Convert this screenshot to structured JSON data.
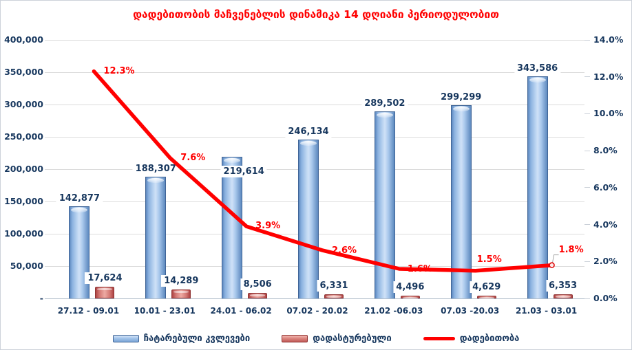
{
  "title": "დადებითობის მაჩვენებლის დინამიკა 14 დღიანი პერიოდულობით",
  "colors": {
    "title_red": "#FF0000",
    "axis_text_navy": "#17375E",
    "line_red": "#FF0000",
    "gridline": "#DCDCDC",
    "bar_blue_fill": "#A9C8EC",
    "bar_blue_border": "#3F6496",
    "bar_red_fill": "#D47A76",
    "bar_red_border": "#8F3333"
  },
  "chart_data": {
    "type": "combo",
    "title": "დადებითობის მაჩვენებლის დინამიკა 14 დღიანი პერიოდულობით",
    "grid": true,
    "legend_position": "bottom",
    "categories": [
      "27.12 - 09.01",
      "10.01 - 23.01",
      "24.01 - 06.02",
      "07.02 - 20.02",
      "21.02 -06.03",
      "07.03 -20.03",
      "21.03 - 03.01"
    ],
    "series": [
      {
        "name": "ჩატარებული კვლევები",
        "type": "bar",
        "axis": "left",
        "color": "#A9C8EC",
        "values": [
          142877,
          188307,
          219614,
          246134,
          289502,
          299299,
          343586
        ],
        "labels": [
          "142,877",
          "188,307",
          "219,614",
          "246,134",
          "289,502",
          "299,299",
          "343,586"
        ]
      },
      {
        "name": "დადასტურებული",
        "type": "bar",
        "axis": "left",
        "color": "#D47A76",
        "values": [
          17624,
          14289,
          8506,
          6331,
          4496,
          4629,
          6353
        ],
        "labels": [
          "17,624",
          "14,289",
          "8,506",
          "6,331",
          "4,496",
          "4,629",
          "6,353"
        ]
      },
      {
        "name": "დადებითობა",
        "type": "line",
        "axis": "right",
        "color": "#FF0000",
        "values": [
          12.3,
          7.6,
          3.9,
          2.6,
          1.6,
          1.5,
          1.8
        ],
        "labels": [
          "12.3%",
          "7.6%",
          "3.9%",
          "2.6%",
          "1.6%",
          "1.5%",
          "1.8%"
        ]
      }
    ],
    "left_axis": {
      "min": 0,
      "max": 400000,
      "step": 50000,
      "tick_labels": [
        "400,000",
        "350,000",
        "300,000",
        "250,000",
        "200,000",
        "150,000",
        "100,000",
        "50,000",
        "-"
      ]
    },
    "right_axis": {
      "min": 0,
      "max": 14,
      "step": 2,
      "tick_labels": [
        "14.0%",
        "12.0%",
        "10.0%",
        "8.0%",
        "6.0%",
        "4.0%",
        "2.0%",
        "0.0%"
      ]
    }
  }
}
